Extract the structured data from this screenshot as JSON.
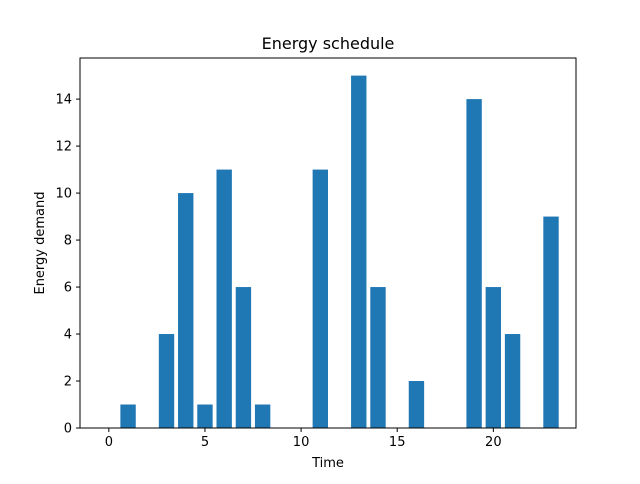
{
  "chart_data": {
    "type": "bar",
    "title": "Energy schedule",
    "xlabel": "Time",
    "ylabel": "Energy demand",
    "x": [
      0,
      1,
      2,
      3,
      4,
      5,
      6,
      7,
      8,
      9,
      10,
      11,
      12,
      13,
      14,
      15,
      16,
      17,
      18,
      19,
      20,
      21,
      22,
      23
    ],
    "values": [
      0,
      1,
      0,
      4,
      10,
      1,
      11,
      6,
      1,
      0,
      0,
      11,
      0,
      15,
      6,
      0,
      2,
      0,
      0,
      14,
      6,
      4,
      0,
      9
    ],
    "xlim": [
      -1.5,
      24.3
    ],
    "ylim": [
      0,
      15.75
    ],
    "xticks": [
      0,
      5,
      10,
      15,
      20
    ],
    "yticks": [
      0,
      2,
      4,
      6,
      8,
      10,
      12,
      14
    ],
    "bar_color": "#1f77b4",
    "grid": false,
    "legend": "none"
  }
}
